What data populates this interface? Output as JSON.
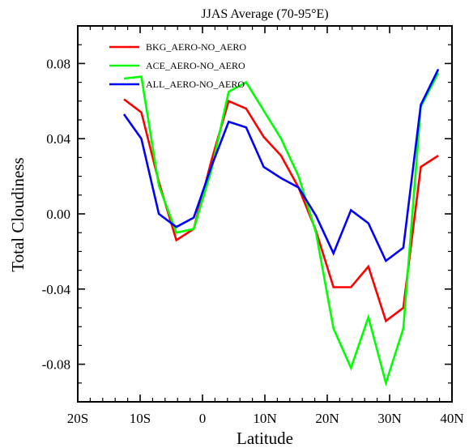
{
  "chart_data": {
    "type": "line",
    "title": "JJAS Average (70-95°E)",
    "xlabel": "Latitude",
    "ylabel": "Total Cloudiness",
    "xlim": [
      -20,
      40
    ],
    "ylim": [
      -0.1,
      0.1
    ],
    "grid": false,
    "legend_position": "top-left",
    "x_ticks": [
      {
        "value": -20,
        "label": "20S"
      },
      {
        "value": -10,
        "label": "10S"
      },
      {
        "value": 0,
        "label": "0"
      },
      {
        "value": 10,
        "label": "10N"
      },
      {
        "value": 20,
        "label": "20N"
      },
      {
        "value": 30,
        "label": "30N"
      },
      {
        "value": 40,
        "label": "40N"
      }
    ],
    "y_ticks": [
      {
        "value": 0.08,
        "label": "0.08"
      },
      {
        "value": 0.04,
        "label": "0.04"
      },
      {
        "value": 0.0,
        "label": "0.00"
      },
      {
        "value": -0.04,
        "label": "-0.04"
      },
      {
        "value": -0.08,
        "label": "-0.08"
      }
    ],
    "x": [
      -12.6,
      -9.8,
      -7.0,
      -4.2,
      -1.4,
      1.4,
      4.2,
      7.0,
      9.8,
      12.6,
      15.4,
      18.2,
      21.0,
      23.8,
      26.6,
      29.4,
      32.2,
      35.0,
      37.8
    ],
    "series": [
      {
        "name": "BKG_AERO-NO_AERO",
        "color": "#ff0000",
        "values": [
          0.061,
          0.054,
          0.017,
          -0.014,
          -0.008,
          0.028,
          0.06,
          0.056,
          0.041,
          0.031,
          0.014,
          -0.009,
          -0.039,
          -0.039,
          -0.028,
          -0.057,
          -0.05,
          0.025,
          0.031
        ]
      },
      {
        "name": "ACE_AERO-NO_AERO",
        "color": "#00ff00",
        "values": [
          0.072,
          0.073,
          0.015,
          -0.01,
          -0.008,
          0.023,
          0.065,
          0.07,
          0.055,
          0.04,
          0.02,
          -0.01,
          -0.061,
          -0.082,
          -0.055,
          -0.09,
          -0.061,
          0.057,
          0.075
        ]
      },
      {
        "name": "ALL_AERO-NO_AERO",
        "color": "#0000ff",
        "values": [
          0.053,
          0.04,
          0.0,
          -0.007,
          -0.002,
          0.025,
          0.049,
          0.046,
          0.025,
          0.019,
          0.014,
          -0.001,
          -0.021,
          0.002,
          -0.005,
          -0.025,
          -0.018,
          0.058,
          0.077
        ]
      }
    ]
  }
}
